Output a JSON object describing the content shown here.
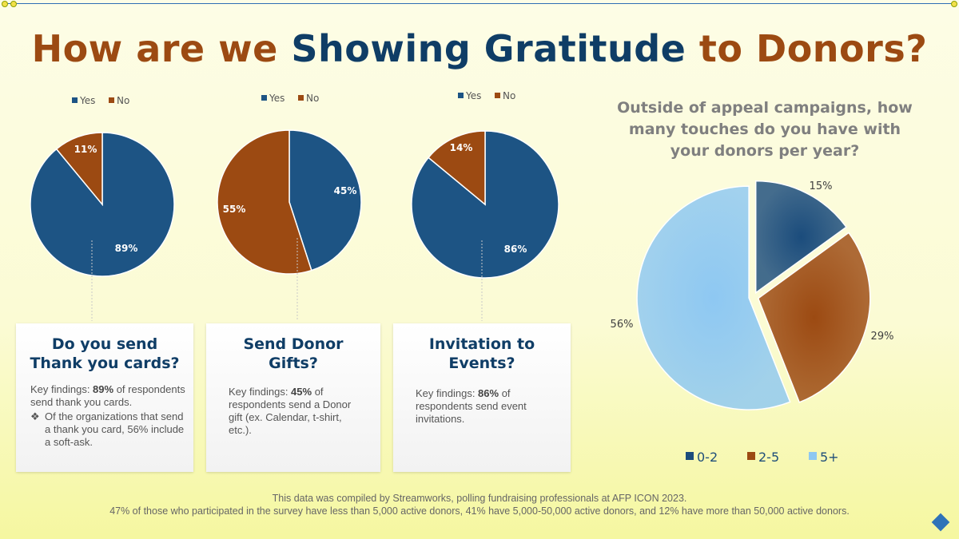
{
  "title": {
    "part1": "How are we ",
    "part2": "Showing Gratitude",
    "part3": " to Donors?"
  },
  "colors": {
    "dark_blue": "#0f4470",
    "brown": "#9c4a12",
    "light_blue": "#8ec8f2",
    "slice_pie_blue": "#1d5484"
  },
  "chart_data": [
    {
      "type": "pie",
      "title": "Do you send Thank you cards?",
      "legend": [
        "Yes",
        "No"
      ],
      "categories": [
        "Yes",
        "No"
      ],
      "values": [
        89,
        11
      ],
      "labels": [
        "89%",
        "11%"
      ]
    },
    {
      "type": "pie",
      "title": "Send Donor Gifts?",
      "legend": [
        "Yes",
        "No"
      ],
      "categories": [
        "Yes",
        "No"
      ],
      "values": [
        45,
        55
      ],
      "labels": [
        "45%",
        "55%"
      ]
    },
    {
      "type": "pie",
      "title": "Invitation to Events?",
      "legend": [
        "Yes",
        "No"
      ],
      "categories": [
        "Yes",
        "No"
      ],
      "values": [
        86,
        14
      ],
      "labels": [
        "86%",
        "14%"
      ]
    },
    {
      "type": "pie",
      "title": "Outside of appeal campaigns, how many touches do you have with your donors per year?",
      "title_lines": [
        "Outside of appeal campaigns, how",
        "many touches do you have with",
        "your donors per year?"
      ],
      "legend": [
        "0-2",
        "2-5",
        "5+"
      ],
      "categories": [
        "0-2",
        "2-5",
        "5+"
      ],
      "values": [
        15,
        29,
        56
      ],
      "labels": [
        "15%",
        "29%",
        "56%"
      ]
    }
  ],
  "cards": [
    {
      "heading": "Do you send Thank you cards?",
      "kf_prefix": "Key findings:  ",
      "kf_value": "89%",
      "kf_suffix": " of respondents send thank you cards.",
      "bullet": "Of the organizations that send a thank you card, 56% include a soft-ask."
    },
    {
      "heading": "Send Donor Gifts?",
      "kf_prefix": "Key findings:  ",
      "kf_value": "45%",
      "kf_suffix": " of respondents send a Donor gift (ex. Calendar, t-shirt, etc.)."
    },
    {
      "heading": "Invitation to Events?",
      "kf_prefix": "Key findings:  ",
      "kf_value": "86%",
      "kf_suffix": " of respondents send event invitations."
    }
  ],
  "footer": {
    "line1": "This data was compiled by Streamworks, polling fundraising professionals at AFP ICON 2023.",
    "line2": "47% of those who participated in the survey have less than 5,000 active donors, 41% have 5,000-50,000 active donors, and 12% have more than 50,000 active donors."
  }
}
